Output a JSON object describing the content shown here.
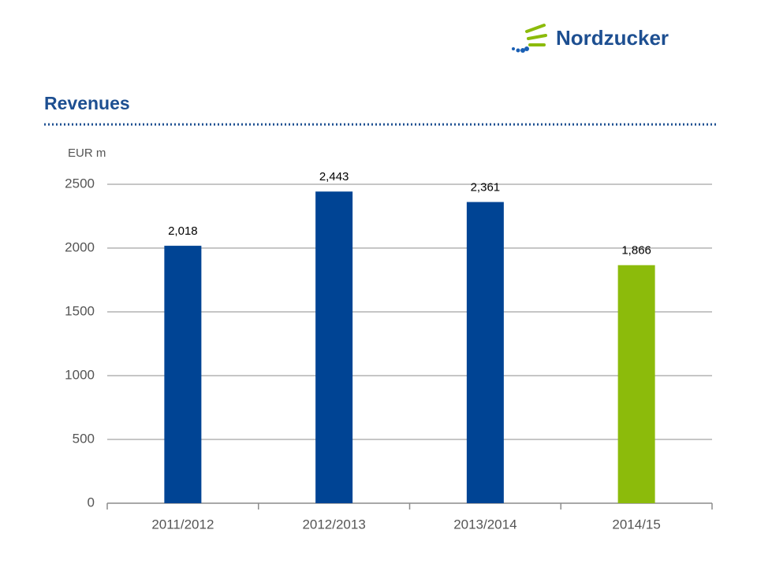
{
  "logo": "Nordzucker",
  "chart_data": {
    "type": "bar",
    "title": "Revenues",
    "y_label": "EUR m",
    "categories": [
      "2011/2012",
      "2012/2013",
      "2013/2014",
      "2014/15"
    ],
    "values": [
      2018,
      2443,
      2361,
      1866
    ],
    "value_labels": [
      "2,018",
      "2,443",
      "2,361",
      "1,866"
    ],
    "colors": [
      "#004494",
      "#004494",
      "#004494",
      "#8cbb0b"
    ],
    "ylim": [
      0,
      2500
    ],
    "yticks": [
      0,
      500,
      1000,
      1500,
      2000,
      2500
    ],
    "grid": true
  }
}
